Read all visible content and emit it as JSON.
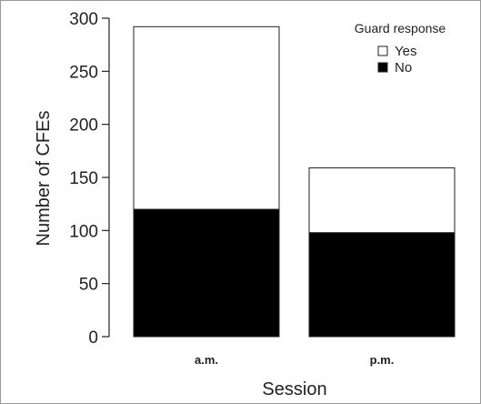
{
  "chart_data": {
    "type": "bar",
    "stacked": true,
    "categories": [
      "a.m.",
      "p.m."
    ],
    "series": [
      {
        "name": "No",
        "values": [
          120,
          98
        ],
        "color": "#000000"
      },
      {
        "name": "Yes",
        "values": [
          172,
          61
        ],
        "color": "#ffffff"
      }
    ],
    "xlabel": "Session",
    "ylabel": "Number of CFEs",
    "ylim": [
      0,
      300
    ],
    "yticks": [
      0,
      50,
      100,
      150,
      200,
      250,
      300
    ],
    "grid": false,
    "legend": {
      "title": "Guard response",
      "placement": "top-right",
      "entries": [
        "Yes",
        "No"
      ]
    }
  }
}
